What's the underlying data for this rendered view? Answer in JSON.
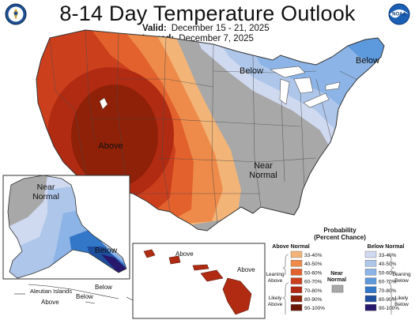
{
  "header": {
    "title": "8-14 Day Temperature Outlook",
    "valid_label": "Valid:",
    "valid_value": "December 15 - 21, 2025",
    "issued_label": "Issued:",
    "issued_value": "December 7, 2025"
  },
  "logos": {
    "left": "department-of-commerce-seal",
    "right": "noaa-logo",
    "right_text": "NOAA"
  },
  "regions": {
    "conus_above": "Above",
    "conus_below": "Below",
    "conus_below_northeast": "Below",
    "conus_near_normal": [
      "Near",
      "Normal"
    ],
    "alaska_near_normal": [
      "Near",
      "Normal"
    ],
    "alaska_below": "Below",
    "aleutian_islands": "Aleutian Islands",
    "aleutian_above": "Above",
    "aleutian_below": "Below",
    "hawaii_above_1": "Above",
    "hawaii_above_2": "Above"
  },
  "legend": {
    "title_line1": "Probability",
    "title_line2": "(Percent Chance)",
    "above_title": "Above Normal",
    "below_title": "Below Normal",
    "near_title": [
      "Near",
      "Normal"
    ],
    "leaning_above": [
      "Leaning",
      "Above"
    ],
    "likely_above": [
      "Likely",
      "Above"
    ],
    "leaning_below": [
      "Leaning",
      "Below"
    ],
    "likely_below": [
      "Likely",
      "Below"
    ],
    "bins": [
      "33-40%",
      "40-50%",
      "50-60%",
      "60-70%",
      "70-80%",
      "80-90%",
      "90-100%"
    ],
    "above_colors": [
      "#f3b477",
      "#ee8b4a",
      "#e2612d",
      "#cc3f1d",
      "#b02b12",
      "#8e2108",
      "#6a1605"
    ],
    "below_colors": [
      "#cfd9ef",
      "#adc6ea",
      "#8cb4e6",
      "#5d99dd",
      "#3377c9",
      "#1e4f9e",
      "#27186c"
    ],
    "near_color": "#a8a8a8"
  }
}
